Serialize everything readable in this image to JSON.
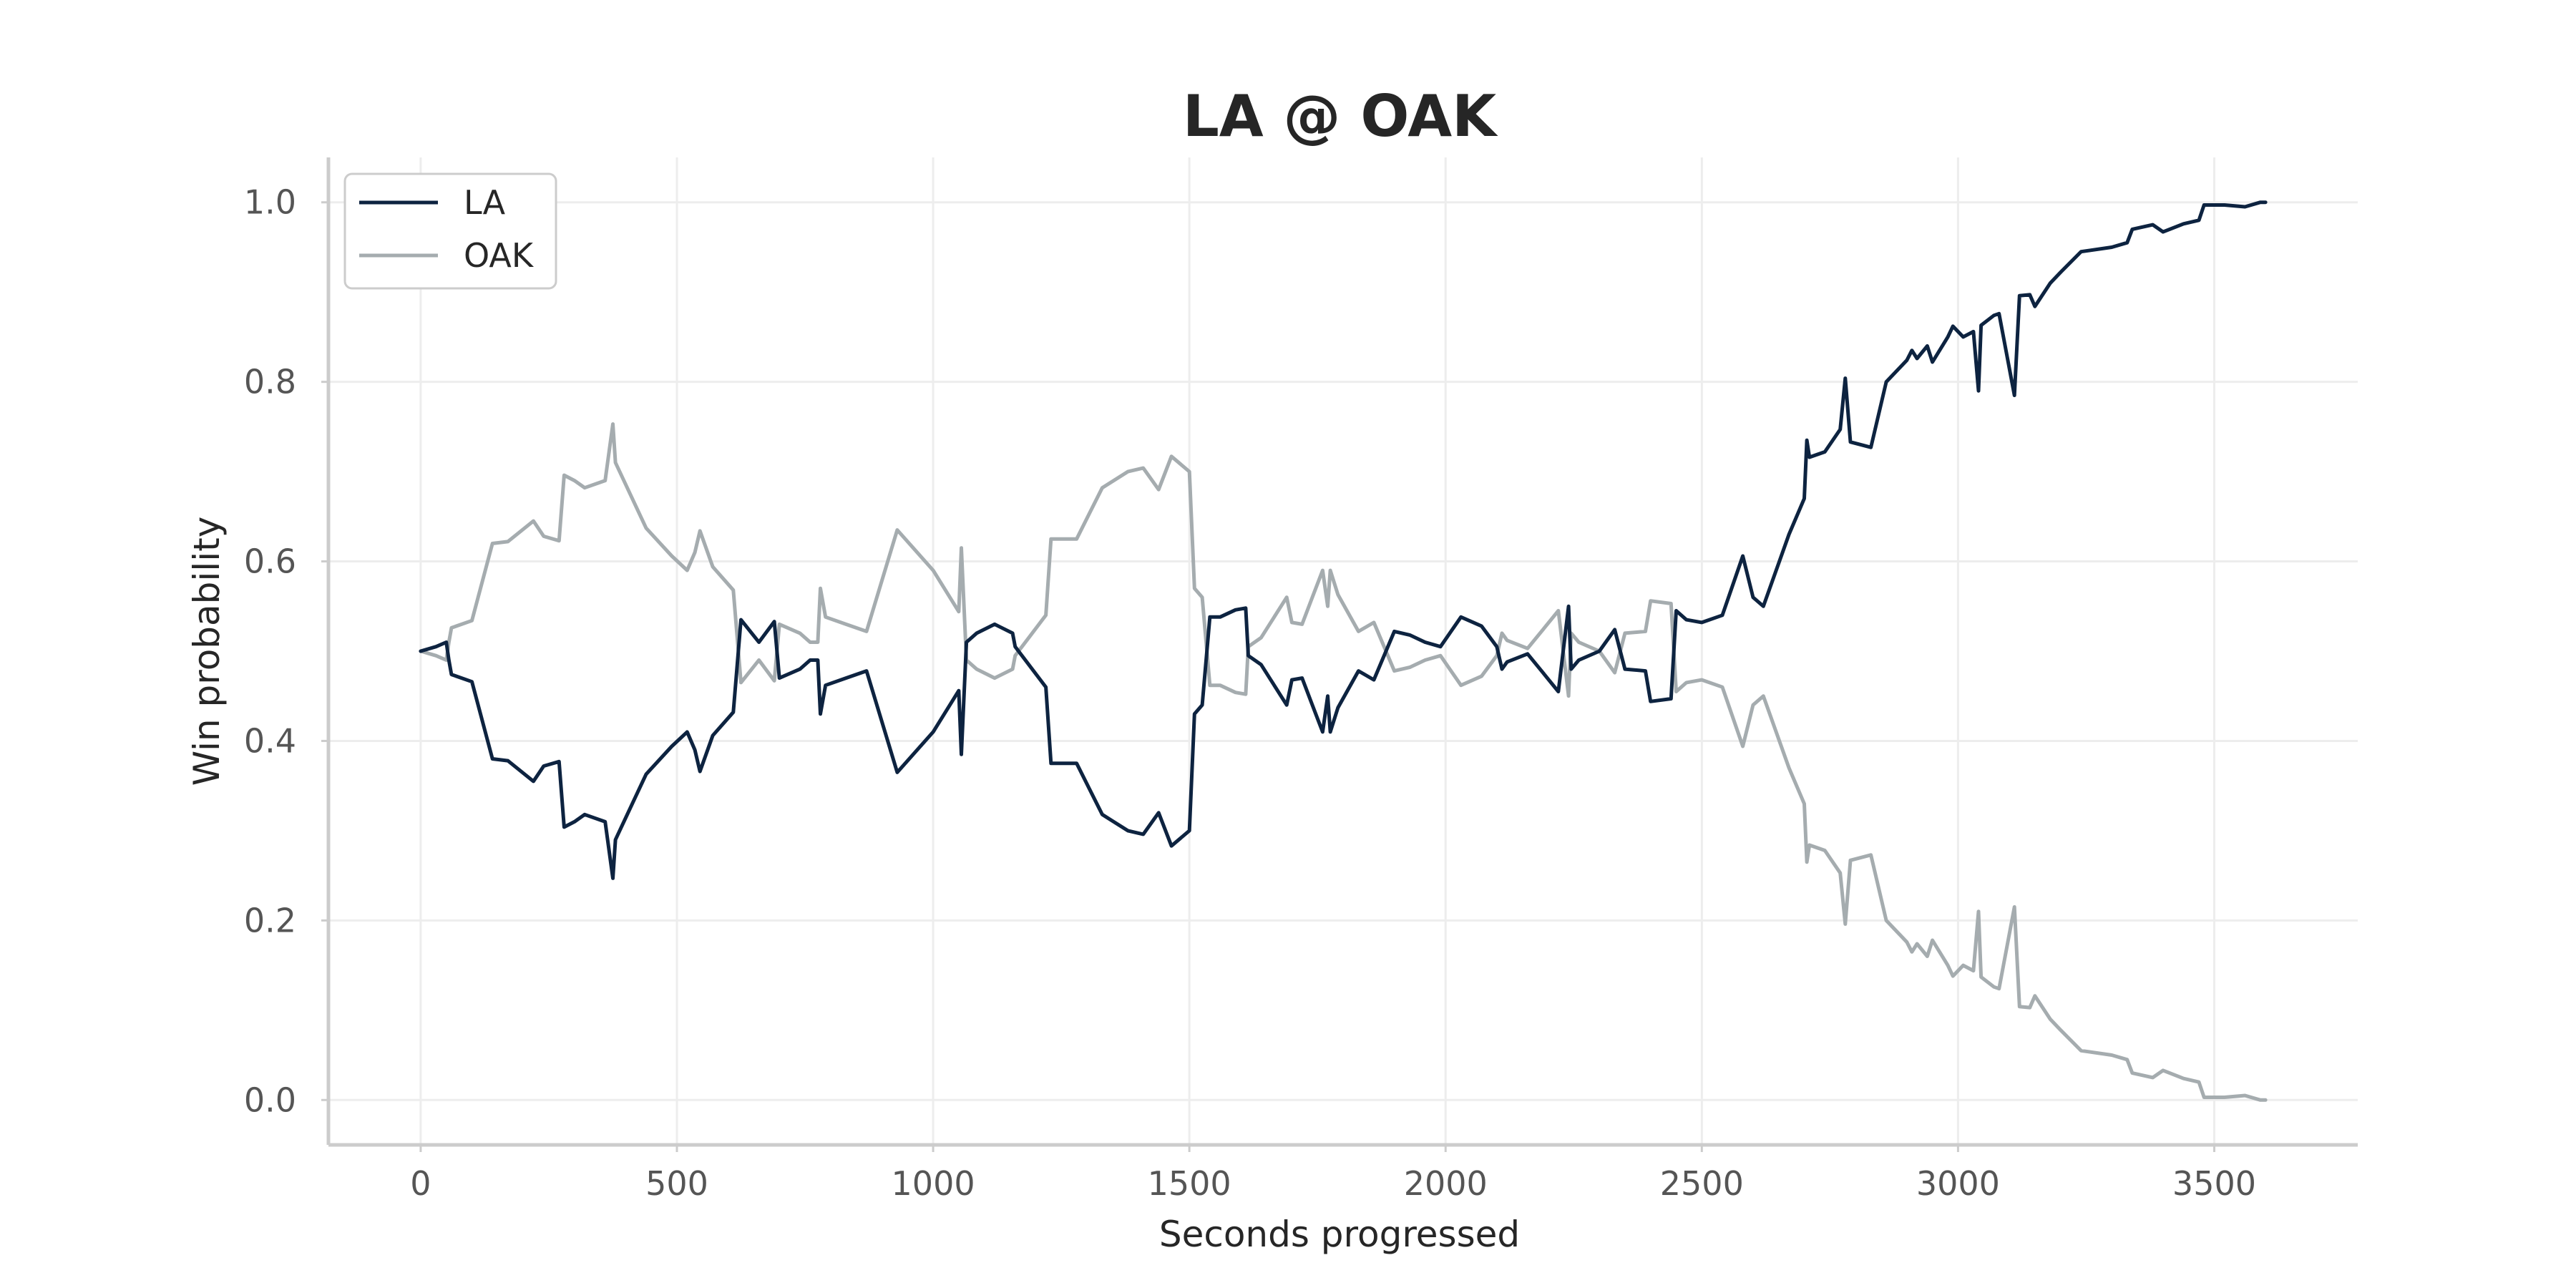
{
  "chart_data": {
    "type": "line",
    "title": "LA @ OAK",
    "xlabel": "Seconds progressed",
    "ylabel": "Win probability",
    "xlim": [
      -180,
      3780
    ],
    "ylim": [
      -0.05,
      1.05
    ],
    "xticks": [
      0,
      500,
      1000,
      1500,
      2000,
      2500,
      3000,
      3500
    ],
    "xtick_labels": [
      "0",
      "500",
      "1000",
      "1500",
      "2000",
      "2500",
      "3000",
      "3500"
    ],
    "yticks": [
      0.0,
      0.2,
      0.4,
      0.6,
      0.8,
      1.0
    ],
    "ytick_labels": [
      "0.0",
      "0.2",
      "0.4",
      "0.6",
      "0.8",
      "1.0"
    ],
    "grid": true,
    "legend_position": "top-left",
    "series": [
      {
        "name": "LA",
        "color": "#0d2340",
        "points": [
          [
            0,
            0.5
          ],
          [
            30,
            0.505
          ],
          [
            50,
            0.51
          ],
          [
            55,
            0.49
          ],
          [
            60,
            0.474
          ],
          [
            100,
            0.466
          ],
          [
            140,
            0.38
          ],
          [
            170,
            0.378
          ],
          [
            220,
            0.355
          ],
          [
            240,
            0.372
          ],
          [
            270,
            0.377
          ],
          [
            280,
            0.304
          ],
          [
            300,
            0.31
          ],
          [
            320,
            0.318
          ],
          [
            360,
            0.31
          ],
          [
            375,
            0.247
          ],
          [
            380,
            0.29
          ],
          [
            440,
            0.363
          ],
          [
            490,
            0.394
          ],
          [
            520,
            0.41
          ],
          [
            535,
            0.39
          ],
          [
            545,
            0.366
          ],
          [
            570,
            0.406
          ],
          [
            610,
            0.432
          ],
          [
            625,
            0.535
          ],
          [
            660,
            0.51
          ],
          [
            690,
            0.533
          ],
          [
            700,
            0.47
          ],
          [
            740,
            0.48
          ],
          [
            760,
            0.49
          ],
          [
            775,
            0.49
          ],
          [
            780,
            0.43
          ],
          [
            790,
            0.462
          ],
          [
            830,
            0.47
          ],
          [
            870,
            0.478
          ],
          [
            930,
            0.365
          ],
          [
            1000,
            0.41
          ],
          [
            1050,
            0.456
          ],
          [
            1055,
            0.385
          ],
          [
            1065,
            0.51
          ],
          [
            1085,
            0.52
          ],
          [
            1120,
            0.53
          ],
          [
            1155,
            0.52
          ],
          [
            1160,
            0.505
          ],
          [
            1220,
            0.46
          ],
          [
            1230,
            0.375
          ],
          [
            1280,
            0.375
          ],
          [
            1330,
            0.318
          ],
          [
            1380,
            0.3
          ],
          [
            1410,
            0.296
          ],
          [
            1440,
            0.32
          ],
          [
            1465,
            0.283
          ],
          [
            1500,
            0.3
          ],
          [
            1510,
            0.43
          ],
          [
            1525,
            0.44
          ],
          [
            1540,
            0.538
          ],
          [
            1560,
            0.538
          ],
          [
            1590,
            0.546
          ],
          [
            1610,
            0.548
          ],
          [
            1615,
            0.495
          ],
          [
            1640,
            0.485
          ],
          [
            1690,
            0.44
          ],
          [
            1700,
            0.468
          ],
          [
            1720,
            0.47
          ],
          [
            1740,
            0.44
          ],
          [
            1760,
            0.41
          ],
          [
            1770,
            0.45
          ],
          [
            1775,
            0.41
          ],
          [
            1790,
            0.437
          ],
          [
            1830,
            0.478
          ],
          [
            1860,
            0.468
          ],
          [
            1900,
            0.522
          ],
          [
            1930,
            0.518
          ],
          [
            1960,
            0.51
          ],
          [
            1990,
            0.505
          ],
          [
            2030,
            0.538
          ],
          [
            2070,
            0.528
          ],
          [
            2100,
            0.505
          ],
          [
            2110,
            0.48
          ],
          [
            2120,
            0.488
          ],
          [
            2160,
            0.497
          ],
          [
            2190,
            0.476
          ],
          [
            2220,
            0.455
          ],
          [
            2240,
            0.55
          ],
          [
            2245,
            0.48
          ],
          [
            2260,
            0.49
          ],
          [
            2300,
            0.5
          ],
          [
            2330,
            0.524
          ],
          [
            2350,
            0.48
          ],
          [
            2390,
            0.478
          ],
          [
            2400,
            0.444
          ],
          [
            2440,
            0.447
          ],
          [
            2450,
            0.545
          ],
          [
            2470,
            0.535
          ],
          [
            2500,
            0.532
          ],
          [
            2540,
            0.54
          ],
          [
            2580,
            0.606
          ],
          [
            2600,
            0.56
          ],
          [
            2620,
            0.55
          ],
          [
            2670,
            0.63
          ],
          [
            2700,
            0.67
          ],
          [
            2705,
            0.735
          ],
          [
            2710,
            0.716
          ],
          [
            2740,
            0.722
          ],
          [
            2770,
            0.747
          ],
          [
            2780,
            0.804
          ],
          [
            2790,
            0.733
          ],
          [
            2830,
            0.727
          ],
          [
            2860,
            0.8
          ],
          [
            2900,
            0.824
          ],
          [
            2910,
            0.835
          ],
          [
            2920,
            0.826
          ],
          [
            2940,
            0.84
          ],
          [
            2950,
            0.822
          ],
          [
            2980,
            0.85
          ],
          [
            2990,
            0.862
          ],
          [
            3010,
            0.85
          ],
          [
            3030,
            0.856
          ],
          [
            3040,
            0.79
          ],
          [
            3045,
            0.863
          ],
          [
            3070,
            0.874
          ],
          [
            3080,
            0.876
          ],
          [
            3110,
            0.785
          ],
          [
            3120,
            0.896
          ],
          [
            3140,
            0.897
          ],
          [
            3150,
            0.884
          ],
          [
            3180,
            0.91
          ],
          [
            3200,
            0.922
          ],
          [
            3240,
            0.945
          ],
          [
            3300,
            0.95
          ],
          [
            3330,
            0.955
          ],
          [
            3340,
            0.97
          ],
          [
            3380,
            0.975
          ],
          [
            3400,
            0.967
          ],
          [
            3440,
            0.976
          ],
          [
            3470,
            0.98
          ],
          [
            3480,
            0.997
          ],
          [
            3520,
            0.997
          ],
          [
            3560,
            0.995
          ],
          [
            3590,
            1.0
          ],
          [
            3600,
            1.0
          ]
        ]
      },
      {
        "name": "OAK",
        "color": "#a5acaf",
        "points": [
          [
            0,
            0.5
          ],
          [
            30,
            0.495
          ],
          [
            50,
            0.49
          ],
          [
            55,
            0.51
          ],
          [
            60,
            0.526
          ],
          [
            100,
            0.534
          ],
          [
            140,
            0.62
          ],
          [
            170,
            0.622
          ],
          [
            220,
            0.645
          ],
          [
            240,
            0.628
          ],
          [
            270,
            0.623
          ],
          [
            280,
            0.696
          ],
          [
            300,
            0.69
          ],
          [
            320,
            0.682
          ],
          [
            360,
            0.69
          ],
          [
            375,
            0.753
          ],
          [
            380,
            0.71
          ],
          [
            440,
            0.637
          ],
          [
            490,
            0.606
          ],
          [
            520,
            0.59
          ],
          [
            535,
            0.61
          ],
          [
            545,
            0.634
          ],
          [
            570,
            0.594
          ],
          [
            610,
            0.568
          ],
          [
            625,
            0.465
          ],
          [
            660,
            0.49
          ],
          [
            690,
            0.467
          ],
          [
            700,
            0.53
          ],
          [
            740,
            0.52
          ],
          [
            760,
            0.51
          ],
          [
            775,
            0.51
          ],
          [
            780,
            0.57
          ],
          [
            790,
            0.538
          ],
          [
            830,
            0.53
          ],
          [
            870,
            0.522
          ],
          [
            930,
            0.635
          ],
          [
            1000,
            0.59
          ],
          [
            1050,
            0.544
          ],
          [
            1055,
            0.615
          ],
          [
            1065,
            0.49
          ],
          [
            1085,
            0.48
          ],
          [
            1120,
            0.47
          ],
          [
            1155,
            0.48
          ],
          [
            1160,
            0.495
          ],
          [
            1220,
            0.54
          ],
          [
            1230,
            0.625
          ],
          [
            1280,
            0.625
          ],
          [
            1330,
            0.682
          ],
          [
            1380,
            0.7
          ],
          [
            1410,
            0.704
          ],
          [
            1440,
            0.68
          ],
          [
            1465,
            0.717
          ],
          [
            1500,
            0.7
          ],
          [
            1510,
            0.57
          ],
          [
            1525,
            0.56
          ],
          [
            1540,
            0.462
          ],
          [
            1560,
            0.462
          ],
          [
            1590,
            0.454
          ],
          [
            1610,
            0.452
          ],
          [
            1615,
            0.505
          ],
          [
            1640,
            0.515
          ],
          [
            1690,
            0.56
          ],
          [
            1700,
            0.532
          ],
          [
            1720,
            0.53
          ],
          [
            1740,
            0.56
          ],
          [
            1760,
            0.59
          ],
          [
            1770,
            0.55
          ],
          [
            1775,
            0.59
          ],
          [
            1790,
            0.563
          ],
          [
            1830,
            0.522
          ],
          [
            1860,
            0.532
          ],
          [
            1900,
            0.478
          ],
          [
            1930,
            0.482
          ],
          [
            1960,
            0.49
          ],
          [
            1990,
            0.495
          ],
          [
            2030,
            0.462
          ],
          [
            2070,
            0.472
          ],
          [
            2100,
            0.495
          ],
          [
            2110,
            0.52
          ],
          [
            2120,
            0.512
          ],
          [
            2160,
            0.503
          ],
          [
            2190,
            0.524
          ],
          [
            2220,
            0.545
          ],
          [
            2240,
            0.45
          ],
          [
            2245,
            0.52
          ],
          [
            2260,
            0.51
          ],
          [
            2300,
            0.5
          ],
          [
            2330,
            0.476
          ],
          [
            2350,
            0.52
          ],
          [
            2390,
            0.522
          ],
          [
            2400,
            0.556
          ],
          [
            2440,
            0.553
          ],
          [
            2450,
            0.455
          ],
          [
            2470,
            0.465
          ],
          [
            2500,
            0.468
          ],
          [
            2540,
            0.46
          ],
          [
            2580,
            0.394
          ],
          [
            2600,
            0.44
          ],
          [
            2620,
            0.45
          ],
          [
            2670,
            0.37
          ],
          [
            2700,
            0.33
          ],
          [
            2705,
            0.265
          ],
          [
            2710,
            0.284
          ],
          [
            2740,
            0.278
          ],
          [
            2770,
            0.253
          ],
          [
            2780,
            0.196
          ],
          [
            2790,
            0.267
          ],
          [
            2830,
            0.273
          ],
          [
            2860,
            0.2
          ],
          [
            2900,
            0.176
          ],
          [
            2910,
            0.165
          ],
          [
            2920,
            0.174
          ],
          [
            2940,
            0.16
          ],
          [
            2950,
            0.178
          ],
          [
            2980,
            0.15
          ],
          [
            2990,
            0.138
          ],
          [
            3010,
            0.15
          ],
          [
            3030,
            0.144
          ],
          [
            3040,
            0.21
          ],
          [
            3045,
            0.137
          ],
          [
            3070,
            0.126
          ],
          [
            3080,
            0.124
          ],
          [
            3110,
            0.215
          ],
          [
            3120,
            0.104
          ],
          [
            3140,
            0.103
          ],
          [
            3150,
            0.116
          ],
          [
            3180,
            0.09
          ],
          [
            3200,
            0.078
          ],
          [
            3240,
            0.055
          ],
          [
            3300,
            0.05
          ],
          [
            3330,
            0.045
          ],
          [
            3340,
            0.03
          ],
          [
            3380,
            0.025
          ],
          [
            3400,
            0.033
          ],
          [
            3440,
            0.024
          ],
          [
            3470,
            0.02
          ],
          [
            3480,
            0.003
          ],
          [
            3520,
            0.003
          ],
          [
            3560,
            0.005
          ],
          [
            3590,
            0.0
          ],
          [
            3600,
            0.0
          ]
        ]
      }
    ]
  }
}
